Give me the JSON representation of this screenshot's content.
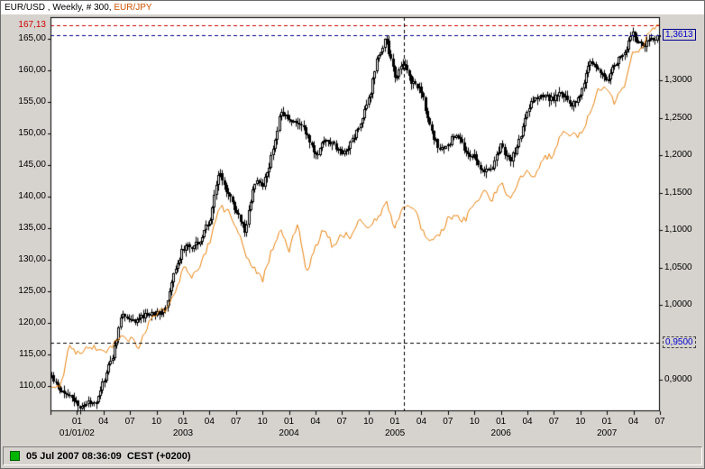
{
  "header": {
    "title_main": "EUR/USD , Weekly, # 300,",
    "title_overlay": " EUR/JPY"
  },
  "status_bar": {
    "timestamp": "05 Jul 2007 08:36:09  CEST (+0200)",
    "led_color": "#00b400"
  },
  "chart_data": {
    "type": "candlestick",
    "title": "EUR/USD , Weekly, # 300, EUR/JPY",
    "interval": "weekly",
    "bars_count": 300,
    "x_start": "2001-10",
    "x_end": "2007-07",
    "plot_bg": "#ffffff",
    "series": [
      {
        "name": "EUR/USD",
        "style": "candlestick",
        "axis": "right",
        "color": "#000000",
        "current": 1.3613,
        "current_label": "1,3613",
        "current_label_color": "#0000cc",
        "monthly_closes_start": "2001-10",
        "monthly_closes": [
          0.905,
          0.888,
          0.881,
          0.864,
          0.868,
          0.872,
          0.901,
          0.935,
          0.99,
          0.978,
          0.982,
          0.988,
          0.99,
          0.995,
          1.049,
          1.077,
          1.079,
          1.09,
          1.117,
          1.177,
          1.15,
          1.123,
          1.098,
          1.165,
          1.16,
          1.199,
          1.259,
          1.245,
          1.244,
          1.229,
          1.198,
          1.222,
          1.215,
          1.203,
          1.218,
          1.242,
          1.274,
          1.329,
          1.356,
          1.303,
          1.326,
          1.296,
          1.287,
          1.233,
          1.209,
          1.212,
          1.233,
          1.202,
          1.199,
          1.179,
          1.184,
          1.215,
          1.192,
          1.214,
          1.262,
          1.28,
          1.278,
          1.276,
          1.283,
          1.266,
          1.277,
          1.325,
          1.32,
          1.301,
          1.323,
          1.336,
          1.365,
          1.345,
          1.352,
          1.3613
        ]
      },
      {
        "name": "EUR/JPY",
        "style": "line",
        "axis": "left",
        "color": "#e8820c",
        "current": 167.13,
        "current_label": "167,13",
        "current_label_color": "#cc0000",
        "monthly_closes_start": "2001-10",
        "monthly_closes": [
          110.2,
          109.9,
          116.0,
          115.3,
          116.1,
          116.1,
          115.6,
          116.3,
          118.3,
          117.3,
          116.3,
          119.9,
          121.5,
          121.9,
          124.4,
          128.8,
          127.5,
          129.2,
          133.0,
          138.5,
          137.6,
          135.5,
          131.0,
          128.7,
          126.7,
          131.4,
          134.7,
          131.7,
          135.9,
          127.7,
          132.2,
          135.0,
          132.0,
          134.1,
          133.6,
          136.8,
          135.3,
          136.4,
          139.2,
          134.9,
          138.5,
          138.8,
          135.1,
          133.1,
          133.7,
          136.3,
          136.6,
          136.2,
          138.7,
          140.9,
          139.5,
          142.4,
          139.4,
          142.5,
          143.9,
          143.5,
          146.1,
          146.5,
          150.2,
          149.5,
          149.8,
          152.5,
          156.9,
          157.3,
          154.9,
          157.3,
          162.5,
          163.2,
          166.6,
          167.13
        ]
      }
    ],
    "left_axis": {
      "min": 106.0,
      "max": 168.42,
      "tick_labels": [
        "165,00",
        "160,00",
        "155,00",
        "150,00",
        "145,00",
        "140,00",
        "135,00",
        "130,00",
        "125,00",
        "120,00",
        "115,00",
        "110,00"
      ],
      "tick_values": [
        165,
        160,
        155,
        150,
        145,
        140,
        135,
        130,
        125,
        120,
        115,
        110
      ]
    },
    "right_axis": {
      "min": 0.858,
      "max": 1.385,
      "tick_labels": [
        "1,3000",
        "1,2500",
        "1,2000",
        "1,1500",
        "1,1000",
        "1,0500",
        "1,0000",
        "0,9000"
      ],
      "tick_values": [
        1.3,
        1.25,
        1.2,
        1.15,
        1.1,
        1.05,
        1.0,
        0.9
      ],
      "level_line": {
        "value": 0.95,
        "label": "0,9500",
        "label_color": "#0000cc"
      }
    },
    "x_axis": {
      "quarter_tick_labels": [
        "01",
        "04",
        "07",
        "10"
      ],
      "year_labels": [
        "01/01/02",
        "2003",
        "2004",
        "2005",
        "2006",
        "2007"
      ]
    },
    "crosshair_vline": {
      "date": "2005-02",
      "color": "#000000"
    },
    "dashed_levels": [
      {
        "axis": "left",
        "value": 167.13,
        "color": "#cc0000"
      },
      {
        "axis": "right",
        "value": 1.3613,
        "color": "#00008b"
      },
      {
        "axis": "right",
        "value": 0.95,
        "color": "#000000"
      }
    ]
  }
}
